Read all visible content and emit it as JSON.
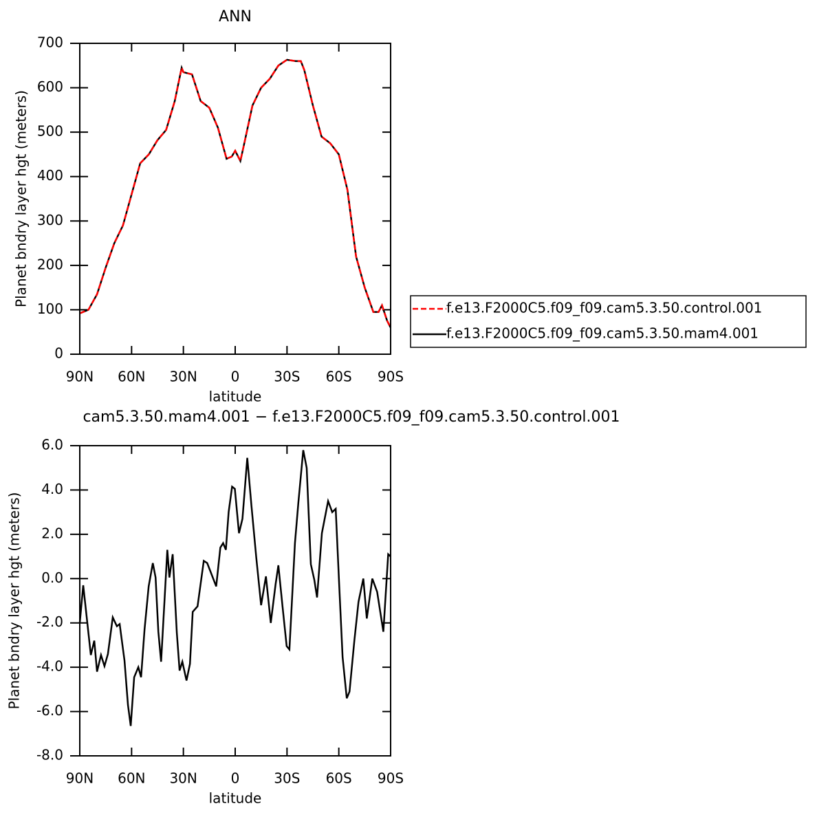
{
  "chart_data": [
    {
      "type": "line",
      "title": "ANN",
      "xlabel": "latitude",
      "ylabel": "Planet bndry layer hgt (meters)",
      "x": [
        90,
        85,
        80,
        75,
        70,
        65,
        60,
        55,
        50,
        45,
        40,
        35,
        31,
        30,
        25,
        20,
        15,
        10,
        5,
        2,
        0,
        -3,
        -5,
        -10,
        -15,
        -20,
        -25,
        -30,
        -35,
        -38,
        -40,
        -45,
        -50,
        -55,
        -60,
        -65,
        -70,
        -75,
        -80,
        -83,
        -85,
        -88,
        -90
      ],
      "series": [
        {
          "name": "f.e13.F2000C5.f09_f09.cam5.3.50.control.001",
          "color": "#ff0000",
          "style": "dashed",
          "values": [
            92,
            100,
            135,
            195,
            250,
            290,
            360,
            430,
            450,
            482,
            505,
            570,
            645,
            635,
            630,
            570,
            555,
            510,
            440,
            445,
            458,
            435,
            470,
            560,
            600,
            620,
            650,
            663,
            660,
            660,
            640,
            560,
            490,
            475,
            450,
            370,
            220,
            150,
            95,
            95,
            110,
            75,
            60
          ]
        },
        {
          "name": "f.e13.F2000C5.f09_f09.cam5.3.50.mam4.001",
          "color": "#000000",
          "style": "solid",
          "values": [
            92,
            100,
            135,
            195,
            250,
            290,
            360,
            430,
            450,
            482,
            505,
            570,
            645,
            635,
            630,
            570,
            555,
            510,
            440,
            445,
            458,
            435,
            470,
            560,
            600,
            620,
            650,
            663,
            660,
            660,
            640,
            560,
            490,
            475,
            450,
            370,
            220,
            150,
            95,
            95,
            110,
            75,
            60
          ]
        }
      ],
      "xlim": [
        90,
        -90
      ],
      "xticks": [
        {
          "value": 90,
          "label": "90N"
        },
        {
          "value": 60,
          "label": "60N"
        },
        {
          "value": 30,
          "label": "30N"
        },
        0,
        {
          "value": -30,
          "label": "30S"
        },
        {
          "value": -60,
          "label": "60S"
        },
        {
          "value": -90,
          "label": "90S"
        }
      ],
      "ylim": [
        0,
        700
      ],
      "yticks": [
        0,
        100,
        200,
        300,
        400,
        500,
        600,
        700
      ],
      "legend": "right"
    },
    {
      "type": "line",
      "title": "cam5.3.50.mam4.001 − f.e13.F2000C5.f09_f09.cam5.3.50.control.001",
      "xlabel": "latitude",
      "ylabel": "Planet bndry layer hgt (meters)",
      "x": [
        90,
        88.0,
        83.6,
        81.6,
        80.0,
        77.7,
        75.7,
        73.7,
        70.9,
        68.5,
        66.9,
        64.1,
        62.1,
        60.5,
        58.5,
        56.1,
        54.5,
        52.5,
        50.1,
        47.7,
        46.1,
        44.5,
        42.9,
        39.3,
        38.1,
        36.2,
        33.8,
        32.2,
        30.6,
        28.2,
        26.2,
        24.6,
        21.8,
        18.2,
        16.2,
        11.0,
        8.6,
        7.0,
        5.4,
        3.8,
        1.8,
        0.2,
        -2.2,
        -4.2,
        -7.0,
        -9.4,
        -12.2,
        -15.0,
        -17.8,
        -20.6,
        -23.4,
        -25.0,
        -27.4,
        -29.8,
        -31.4,
        -34.6,
        -36.6,
        -39.4,
        -41.4,
        -43.8,
        -45.8,
        -47.4,
        -50.2,
        -53.8,
        -56.2,
        -58.2,
        -60.2,
        -62.2,
        -64.6,
        -66.2,
        -69.0,
        -71.4,
        -74.2,
        -76.2,
        -79.4,
        -82.2,
        -85.8,
        -88.6,
        -90
      ],
      "series": [
        {
          "color": "#000000",
          "style": "solid",
          "values": [
            -2.0,
            -0.3,
            -3.45,
            -2.8,
            -4.2,
            -3.45,
            -3.95,
            -3.4,
            -1.75,
            -2.15,
            -2.05,
            -3.7,
            -5.7,
            -6.65,
            -4.45,
            -4.0,
            -4.45,
            -2.3,
            -0.35,
            0.7,
            0.05,
            -2.4,
            -3.75,
            1.3,
            0.05,
            1.1,
            -2.45,
            -4.15,
            -3.75,
            -4.6,
            -3.85,
            -1.5,
            -1.25,
            0.8,
            0.7,
            -0.35,
            1.4,
            1.6,
            1.3,
            3.0,
            4.15,
            4.05,
            2.05,
            2.7,
            5.45,
            3.3,
            0.95,
            -1.2,
            0.1,
            -2.0,
            -0.25,
            0.6,
            -1.25,
            -3.05,
            -3.2,
            1.6,
            3.45,
            5.8,
            5.0,
            0.65,
            -0.05,
            -0.85,
            2.05,
            3.5,
            3.0,
            3.15,
            -0.25,
            -3.55,
            -5.4,
            -5.1,
            -2.8,
            -1.05,
            0,
            -1.8,
            0,
            -0.6,
            -2.4,
            1.1,
            1.0
          ]
        }
      ],
      "xlim": [
        90,
        -90
      ],
      "xticks": [
        {
          "value": 90,
          "label": "90N"
        },
        {
          "value": 60,
          "label": "60N"
        },
        {
          "value": 30,
          "label": "30N"
        },
        0,
        {
          "value": -30,
          "label": "30S"
        },
        {
          "value": -60,
          "label": "60S"
        },
        {
          "value": -90,
          "label": "90S"
        }
      ],
      "ylim": [
        -8,
        6
      ],
      "yticks": [
        {
          "value": -8,
          "label": "-8.0"
        },
        {
          "value": -6,
          "label": "-6.0"
        },
        {
          "value": -4,
          "label": "-4.0"
        },
        {
          "value": -2,
          "label": "-2.0"
        },
        {
          "value": 0,
          "label": "0.0"
        },
        {
          "value": 2,
          "label": "2.0"
        },
        {
          "value": 4,
          "label": "4.0"
        },
        {
          "value": 6,
          "label": "6.0"
        }
      ]
    }
  ]
}
